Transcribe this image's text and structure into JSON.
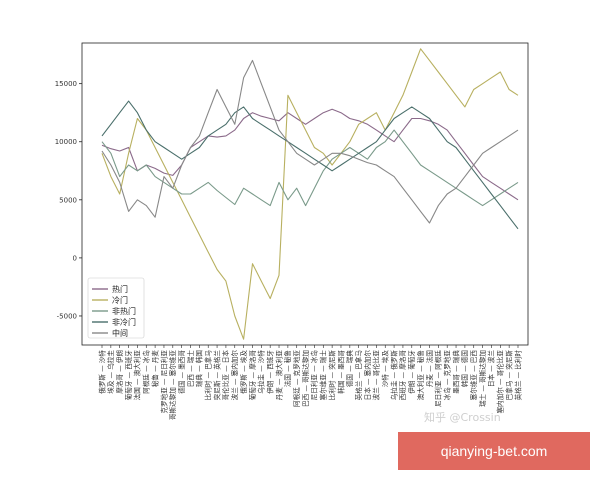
{
  "chart_data": {
    "type": "line",
    "title": "",
    "xlabel": "",
    "ylabel": "",
    "ylim": [
      -7500,
      18500
    ],
    "yticks": [
      -5000,
      0,
      5000,
      10000,
      15000
    ],
    "legend_position": "bottom-left",
    "grid": false,
    "categories": [
      "俄罗斯 — 沙特",
      "埃及 — 乌拉圭",
      "摩洛哥 — 伊朗",
      "葡萄牙 — 西班牙",
      "法国 — 澳大利亚",
      "阿根廷 — 冰岛",
      "秘鲁 — 丹麦",
      "克罗地亚 — 尼日利亚",
      "哥斯达黎加 — 塞尔维亚",
      "德国 — 墨西哥",
      "巴西 — 瑞士",
      "瑞典 — 韩国",
      "比利时 — 巴拿马",
      "突尼斯 — 英格兰",
      "哥伦比亚 — 日本",
      "波兰 — 塞内加尔",
      "俄罗斯 — 埃及",
      "葡萄牙 — 摩洛哥",
      "乌拉圭 — 沙特",
      "伊朗 — 西班牙",
      "丹麦 — 澳大利亚",
      "法国 — 秘鲁",
      "阿根廷 — 克罗地亚",
      "巴西 — 哥斯达黎加",
      "尼日利亚 — 冰岛",
      "塞尔维亚 — 瑞士",
      "比利时 — 突尼斯",
      "韩国 — 墨西哥",
      "德国 — 瑞典",
      "英格兰 — 巴拿马",
      "日本 — 塞内加尔",
      "波兰 — 哥伦比亚",
      "沙特 — 埃及",
      "乌拉圭 — 俄罗斯",
      "西班牙 — 摩洛哥",
      "伊朗 — 葡萄牙",
      "澳大利亚 — 秘鲁",
      "丹麦 — 法国",
      "尼日利亚 — 阿根廷",
      "冰岛 — 克罗地亚",
      "墨西哥 — 瑞典",
      "韩国 — 德国",
      "塞尔维亚 — 巴西",
      "瑞士 — 哥斯达黎加",
      "日本 — 波兰",
      "塞内加尔 — 哥伦比亚",
      "巴拿马 — 突尼斯",
      "英格兰 — 比利时"
    ],
    "series": [
      {
        "name": "热门",
        "color": "#8b6a8a",
        "values": [
          9700,
          9400,
          9200,
          9500,
          7500,
          8000,
          7700,
          7300,
          7100,
          8000,
          9500,
          10000,
          10500,
          10400,
          10500,
          11000,
          12000,
          12500,
          12200,
          12000,
          11800,
          12500,
          12000,
          11500,
          12000,
          12500,
          12800,
          12500,
          12000,
          11800,
          11500,
          11000,
          10500,
          10000,
          11000,
          12000,
          12000,
          11800,
          11500,
          11000,
          10000,
          9000,
          8000,
          7000,
          6500,
          6000,
          5500,
          5000
        ]
      },
      {
        "name": "冷门",
        "color": "#b8b060",
        "values": [
          9000,
          7000,
          5500,
          9000,
          12000,
          11000,
          9500,
          8000,
          6500,
          5000,
          3500,
          2000,
          500,
          -1000,
          -2000,
          -5000,
          -7000,
          -500,
          -2000,
          -3500,
          -1500,
          14000,
          12500,
          11000,
          9500,
          9000,
          8000,
          9000,
          10000,
          11500,
          12000,
          12500,
          11000,
          12500,
          14000,
          16000,
          18000,
          17000,
          16000,
          15000,
          14000,
          13000,
          14500,
          15000,
          15500,
          16000,
          14500,
          14000
        ]
      },
      {
        "name": "非热门",
        "color": "#7a9a8a",
        "values": [
          10000,
          9000,
          7000,
          8000,
          7500,
          8000,
          7000,
          6500,
          6000,
          5500,
          5500,
          6000,
          6500,
          5800,
          5200,
          4600,
          6000,
          5500,
          5000,
          4500,
          6500,
          5000,
          6000,
          4500,
          6000,
          7500,
          8500,
          9000,
          9500,
          9000,
          8500,
          9500,
          10000,
          11000,
          10000,
          9000,
          8000,
          7500,
          7000,
          6500,
          6000,
          5500,
          5000,
          4500,
          5000,
          5500,
          6000,
          6500
        ]
      },
      {
        "name": "非冷门",
        "color": "#4a6f6b",
        "values": [
          10500,
          11500,
          12500,
          13500,
          12500,
          11000,
          10000,
          9500,
          9000,
          8500,
          9000,
          9500,
          10500,
          11000,
          11500,
          12500,
          13000,
          12000,
          11500,
          11000,
          10500,
          10000,
          9500,
          9000,
          8500,
          8000,
          7500,
          8000,
          8500,
          9000,
          9500,
          10000,
          11000,
          12000,
          12500,
          13000,
          12500,
          12000,
          11000,
          10000,
          9500,
          8500,
          7500,
          6500,
          5500,
          4500,
          3500,
          2500
        ]
      },
      {
        "name": "中间",
        "color": "#888888",
        "values": [
          9200,
          8000,
          6500,
          4000,
          5000,
          4500,
          3500,
          7000,
          6000,
          8000,
          9500,
          10500,
          12500,
          14500,
          13000,
          11500,
          15500,
          17000,
          15000,
          13000,
          11000,
          10000,
          9000,
          8500,
          8000,
          8500,
          9000,
          9000,
          8800,
          8500,
          8200,
          8000,
          7500,
          7000,
          6000,
          5000,
          4000,
          3000,
          4500,
          5500,
          6000,
          7000,
          8000,
          9000,
          9500,
          10000,
          10500,
          11000
        ]
      }
    ]
  },
  "watermark_text": "知乎 @Crossin",
  "banner": {
    "text": "qianying-bet.com",
    "color": "#e0695f"
  }
}
